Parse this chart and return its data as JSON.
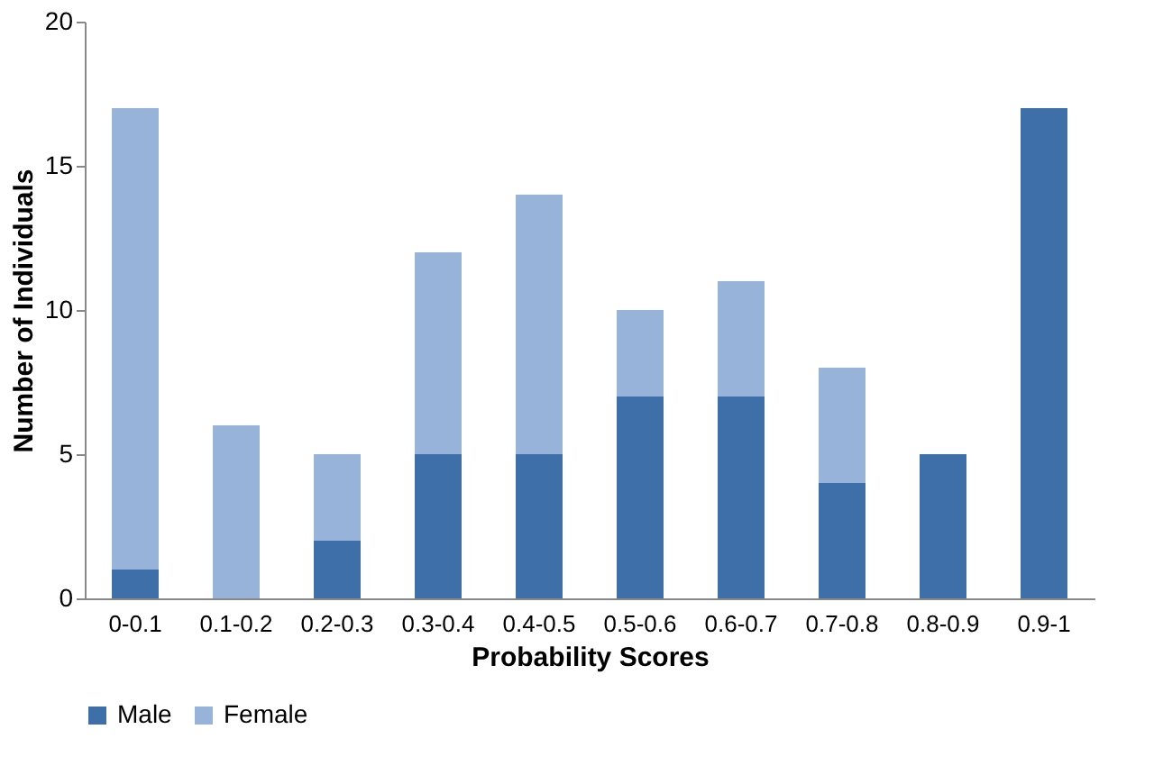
{
  "chart_data": {
    "type": "bar",
    "stacked": true,
    "xlabel": "Probability Scores",
    "ylabel": "Number of Individuals",
    "categories": [
      "0-0.1",
      "0.1-0.2",
      "0.2-0.3",
      "0.3-0.4",
      "0.4-0.5",
      "0.5-0.6",
      "0.6-0.7",
      "0.7-0.8",
      "0.8-0.9",
      "0.9-1"
    ],
    "series": [
      {
        "name": "Male",
        "color": "#3f6fa9",
        "values": [
          1,
          0,
          2,
          5,
          5,
          7,
          7,
          4,
          5,
          17
        ]
      },
      {
        "name": "Female",
        "color": "#97b3d9",
        "values": [
          16,
          6,
          3,
          7,
          9,
          3,
          4,
          4,
          0,
          0
        ]
      }
    ],
    "ylim": [
      0,
      20
    ],
    "yticks": [
      0,
      5,
      10,
      15,
      20
    ],
    "grid": false,
    "legend": "bottom"
  }
}
